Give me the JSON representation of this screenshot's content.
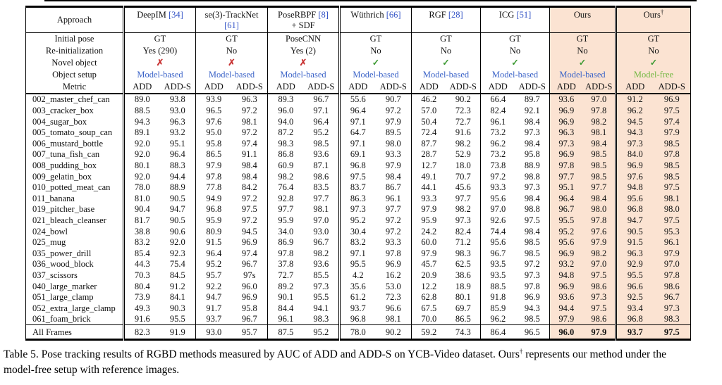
{
  "colors": {
    "highlight_bg": "#fbe3d2",
    "cite_blue": "#3353c6",
    "model_based_blue": "#3c64c8",
    "model_free_green": "#74b843",
    "check_green": "#3f9b35",
    "cross_red": "#c83232"
  },
  "table": {
    "approach_label": "Approach",
    "row_labels": {
      "initial_pose": "Initial pose",
      "reinit": "Re-initialization",
      "novel": "Novel object",
      "setup": "Object setup",
      "metric": "Metric"
    },
    "metrics": [
      "ADD",
      "ADD-S"
    ],
    "icons": {
      "check": "✓",
      "cross": "✗"
    },
    "methods": [
      {
        "name": "DeepIM",
        "cite": "[34]",
        "cite_line": 1,
        "line2": "",
        "sup": "",
        "initial_pose": "GT",
        "reinit": "Yes (290)",
        "novel": "no",
        "setup": "Model-based",
        "setup_style": "model-based",
        "highlight": false,
        "sep": "double"
      },
      {
        "name": "se(3)-TrackNet",
        "cite": "[61]",
        "cite_line": 2,
        "line2": "",
        "sup": "",
        "initial_pose": "GT",
        "reinit": "No",
        "novel": "no",
        "setup": "Model-based",
        "setup_style": "model-based",
        "highlight": false,
        "sep": "single"
      },
      {
        "name": "PoseRBPF",
        "cite": "[8]",
        "cite_line": 1,
        "line2": "+ SDF",
        "sup": "",
        "initial_pose": "PoseCNN",
        "reinit": "Yes (2)",
        "novel": "no",
        "setup": "Model-based",
        "setup_style": "model-based",
        "highlight": false,
        "sep": "single"
      },
      {
        "name": "Wüthrich",
        "cite": "[66]",
        "cite_line": 1,
        "line2": "",
        "sup": "",
        "initial_pose": "GT",
        "reinit": "No",
        "novel": "yes",
        "setup": "Model-based",
        "setup_style": "model-based",
        "highlight": false,
        "sep": "double"
      },
      {
        "name": "RGF",
        "cite": "[28]",
        "cite_line": 1,
        "line2": "",
        "sup": "",
        "initial_pose": "GT",
        "reinit": "No",
        "novel": "yes",
        "setup": "Model-based",
        "setup_style": "model-based",
        "highlight": false,
        "sep": "single"
      },
      {
        "name": "ICG",
        "cite": "[51]",
        "cite_line": 1,
        "line2": "",
        "sup": "",
        "initial_pose": "GT",
        "reinit": "No",
        "novel": "yes",
        "setup": "Model-based",
        "setup_style": "model-based",
        "highlight": false,
        "sep": "single"
      },
      {
        "name": "Ours",
        "cite": "",
        "cite_line": 1,
        "line2": "",
        "sup": "",
        "initial_pose": "GT",
        "reinit": "No",
        "novel": "yes",
        "setup": "Model-based",
        "setup_style": "model-based",
        "highlight": true,
        "sep": "single"
      },
      {
        "name": "Ours",
        "cite": "",
        "cite_line": 1,
        "line2": "",
        "sup": "†",
        "initial_pose": "GT",
        "reinit": "No",
        "novel": "yes",
        "setup": "Model-free",
        "setup_style": "model-free",
        "highlight": true,
        "sep": "double"
      }
    ],
    "rows": [
      {
        "name": "002_master_chef_can",
        "values": [
          "89.0",
          "93.8",
          "93.9",
          "96.3",
          "89.3",
          "96.7",
          "55.6",
          "90.7",
          "46.2",
          "90.2",
          "66.4",
          "89.7",
          "93.6",
          "97.0",
          "91.2",
          "96.9"
        ]
      },
      {
        "name": "003_cracker_box",
        "values": [
          "88.5",
          "93.0",
          "96.5",
          "97.2",
          "96.0",
          "97.1",
          "96.4",
          "97.2",
          "57.0",
          "72.3",
          "82.4",
          "92.1",
          "96.9",
          "97.8",
          "96.2",
          "97.5"
        ]
      },
      {
        "name": "004_sugar_box",
        "values": [
          "94.3",
          "96.3",
          "97.6",
          "98.1",
          "94.0",
          "96.4",
          "97.1",
          "97.9",
          "50.4",
          "72.7",
          "96.1",
          "98.4",
          "96.9",
          "98.2",
          "94.5",
          "97.4"
        ]
      },
      {
        "name": "005_tomato_soup_can",
        "values": [
          "89.1",
          "93.2",
          "95.0",
          "97.2",
          "87.2",
          "95.2",
          "64.7",
          "89.5",
          "72.4",
          "91.6",
          "73.2",
          "97.3",
          "96.3",
          "98.1",
          "94.3",
          "97.9"
        ]
      },
      {
        "name": "006_mustard_bottle",
        "values": [
          "92.0",
          "95.1",
          "95.8",
          "97.4",
          "98.3",
          "98.5",
          "97.1",
          "98.0",
          "87.7",
          "98.2",
          "96.2",
          "98.4",
          "97.3",
          "98.4",
          "97.3",
          "98.5"
        ]
      },
      {
        "name": "007_tuna_fish_can",
        "values": [
          "92.0",
          "96.4",
          "86.5",
          "91.1",
          "86.8",
          "93.6",
          "69.1",
          "93.3",
          "28.7",
          "52.9",
          "73.2",
          "95.8",
          "96.9",
          "98.5",
          "84.0",
          "97.8"
        ]
      },
      {
        "name": "008_pudding_box",
        "values": [
          "80.1",
          "88.3",
          "97.9",
          "98.4",
          "60.9",
          "87.1",
          "96.8",
          "97.9",
          "12.7",
          "18.0",
          "73.8",
          "88.9",
          "97.8",
          "98.5",
          "96.9",
          "98.5"
        ]
      },
      {
        "name": "009_gelatin_box",
        "values": [
          "92.0",
          "94.4",
          "97.8",
          "98.4",
          "98.2",
          "98.6",
          "97.5",
          "98.4",
          "49.1",
          "70.7",
          "97.2",
          "98.8",
          "97.7",
          "98.5",
          "97.6",
          "98.5"
        ]
      },
      {
        "name": "010_potted_meat_can",
        "values": [
          "78.0",
          "88.9",
          "77.8",
          "84.2",
          "76.4",
          "83.5",
          "83.7",
          "86.7",
          "44.1",
          "45.6",
          "93.3",
          "97.3",
          "95.1",
          "97.7",
          "94.8",
          "97.5"
        ]
      },
      {
        "name": "011_banana",
        "values": [
          "81.0",
          "90.5",
          "94.9",
          "97.2",
          "92.8",
          "97.7",
          "86.3",
          "96.1",
          "93.3",
          "97.7",
          "95.6",
          "98.4",
          "96.4",
          "98.4",
          "95.6",
          "98.1"
        ]
      },
      {
        "name": "019_pitcher_base",
        "values": [
          "90.4",
          "94.7",
          "96.8",
          "97.5",
          "97.7",
          "98.1",
          "97.3",
          "97.7",
          "97.9",
          "98.2",
          "97.0",
          "98.8",
          "96.7",
          "98.0",
          "96.8",
          "98.0"
        ]
      },
      {
        "name": "021_bleach_cleanser",
        "values": [
          "81.7",
          "90.5",
          "95.9",
          "97.2",
          "95.9",
          "97.0",
          "95.2",
          "97.2",
          "95.9",
          "97.3",
          "92.6",
          "97.5",
          "95.5",
          "97.8",
          "94.7",
          "97.5"
        ]
      },
      {
        "name": "024_bowl",
        "values": [
          "38.8",
          "90.6",
          "80.9",
          "94.5",
          "34.0",
          "93.0",
          "30.4",
          "97.2",
          "24.2",
          "82.4",
          "74.4",
          "98.4",
          "95.2",
          "97.6",
          "90.5",
          "95.3"
        ]
      },
      {
        "name": "025_mug",
        "values": [
          "83.2",
          "92.0",
          "91.5",
          "96.9",
          "86.9",
          "96.7",
          "83.2",
          "93.3",
          "60.0",
          "71.2",
          "95.6",
          "98.5",
          "95.6",
          "97.9",
          "91.5",
          "96.1"
        ]
      },
      {
        "name": "035_power_drill",
        "values": [
          "85.4",
          "92.3",
          "96.4",
          "97.4",
          "97.8",
          "98.2",
          "97.1",
          "97.8",
          "97.9",
          "98.3",
          "96.7",
          "98.5",
          "96.9",
          "98.2",
          "96.3",
          "97.9"
        ]
      },
      {
        "name": "036_wood_block",
        "values": [
          "44.3",
          "75.4",
          "95.2",
          "96.7",
          "37.8",
          "93.6",
          "95.5",
          "96.9",
          "45.7",
          "62.5",
          "93.5",
          "97.2",
          "93.2",
          "97.0",
          "92.9",
          "97.0"
        ]
      },
      {
        "name": "037_scissors",
        "values": [
          "70.3",
          "84.5",
          "95.7",
          "97s",
          "72.7",
          "85.5",
          "4.2",
          "16.2",
          "20.9",
          "38.6",
          "93.5",
          "97.3",
          "94.8",
          "97.5",
          "95.5",
          "97.8"
        ]
      },
      {
        "name": "040_large_marker",
        "values": [
          "80.4",
          "91.2",
          "92.2",
          "96.0",
          "89.2",
          "97.3",
          "35.6",
          "53.0",
          "12.2",
          "18.9",
          "88.5",
          "97.8",
          "96.9",
          "98.6",
          "96.6",
          "98.6"
        ]
      },
      {
        "name": "051_large_clamp",
        "values": [
          "73.9",
          "84.1",
          "94.7",
          "96.9",
          "90.1",
          "95.5",
          "61.2",
          "72.3",
          "62.8",
          "80.1",
          "91.8",
          "96.9",
          "93.6",
          "97.3",
          "92.5",
          "96.7"
        ]
      },
      {
        "name": "052_extra_large_clamp",
        "values": [
          "49.3",
          "90.3",
          "91.7",
          "95.8",
          "84.4",
          "94.1",
          "93.7",
          "96.6",
          "67.5",
          "69.7",
          "85.9",
          "94.3",
          "94.4",
          "97.5",
          "93.4",
          "97.3"
        ]
      },
      {
        "name": "061_foam_brick",
        "values": [
          "91.6",
          "95.5",
          "93.7",
          "96.7",
          "96.1",
          "98.3",
          "96.8",
          "98.1",
          "70.0",
          "86.5",
          "96.2",
          "98.5",
          "97.9",
          "98.6",
          "96.8",
          "98.3"
        ]
      }
    ],
    "footer": {
      "name": "All Frames",
      "values": [
        "82.3",
        "91.9",
        "93.0",
        "95.7",
        "87.5",
        "95.2",
        "78.0",
        "90.2",
        "59.2",
        "74.3",
        "86.4",
        "96.5",
        "96.0",
        "97.9",
        "93.7",
        "97.5"
      ],
      "bold_cols": [
        12,
        13,
        14,
        15
      ]
    }
  },
  "caption": {
    "prefix": "Table 5. Pose tracking results of RGBD methods measured by AUC of ADD and ADD-S on YCB-Video dataset. Ours",
    "sup": "†",
    "suffix": " represents our method under the",
    "line2": "model-free setup with reference images."
  }
}
